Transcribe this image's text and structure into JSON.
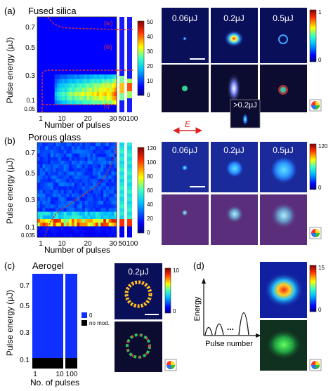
{
  "panels": {
    "a": {
      "label": "(a)",
      "title": "Fused silica",
      "ylabel": "Pulse energy (μJ)",
      "xlabel": "Number of pulses",
      "yticks": [
        "0.7",
        "0.5",
        "0.3",
        "0.1",
        "0.05"
      ],
      "xticks": [
        "1",
        "10",
        "20",
        "30",
        "50",
        "100"
      ],
      "colorbar_ticks": [
        "50",
        "40",
        "30",
        "20",
        "10",
        "0"
      ],
      "region_labels": [
        "(iv)",
        "(iii)",
        "(ii)",
        "(i)"
      ],
      "image_labels": [
        "0.06μJ",
        "0.2μJ",
        "0.5μJ"
      ],
      "image_colorbar_ticks": [
        "1",
        "0"
      ],
      "inset_label": ">0.2μJ",
      "field_label": "E"
    },
    "b": {
      "label": "(b)",
      "title": "Porous glass",
      "ylabel": "Pulse energy (μJ)",
      "xlabel": "Number of pulses",
      "yticks": [
        "0.7",
        "0.5",
        "0.3",
        "0.1",
        "0.035"
      ],
      "xticks": [
        "1",
        "10",
        "20",
        "30",
        "50",
        "100"
      ],
      "colorbar_ticks": [
        "120",
        "100",
        "80",
        "60",
        "40",
        "20",
        "0"
      ],
      "image_labels": [
        "0.06μJ",
        "0.2μJ",
        "0.5μJ"
      ],
      "image_colorbar_ticks": [
        "120",
        "0"
      ]
    },
    "c": {
      "label": "(c)",
      "title": "Aerogel",
      "ylabel": "Pulse energy (μJ)",
      "xlabel": "No. of pulses",
      "yticks": [
        "0.7",
        "0.5",
        "0.3",
        "0.1"
      ],
      "xticks": [
        "1",
        "10",
        "100"
      ],
      "legend": [
        "0",
        "no mod."
      ],
      "image_label": "0.2μJ",
      "image_colorbar_ticks": [
        "10",
        "0"
      ]
    },
    "d": {
      "label": "(d)",
      "schematic_ylabel": "Energy",
      "schematic_xlabel": "Pulse number",
      "schematic_dots": "...",
      "image_colorbar_ticks": [
        "15",
        "0"
      ]
    }
  },
  "chart_data": [
    {
      "type": "heatmap",
      "title": "Fused silica",
      "xlabel": "Number of pulses",
      "ylabel": "Pulse energy (μJ)",
      "x": [
        1,
        10,
        20,
        30,
        50,
        100
      ],
      "ylim": [
        0.05,
        0.8
      ],
      "colorbar_range": [
        0,
        50
      ],
      "rows_low_to_high_energy": [
        [
          0,
          0,
          0,
          0,
          0,
          0,
          0,
          0,
          0,
          0,
          0,
          0,
          0,
          0,
          0,
          0,
          0,
          0,
          0,
          0,
          0,
          0,
          0,
          0,
          0,
          0,
          0,
          0,
          0,
          0,
          0,
          0
        ],
        [
          0,
          0,
          0,
          0,
          0,
          0,
          0,
          8,
          10,
          12,
          14,
          14,
          16,
          18,
          16,
          18,
          20,
          18,
          20,
          22,
          20,
          22,
          24,
          22,
          24,
          22,
          26,
          24,
          26,
          24,
          28,
          30
        ],
        [
          0,
          0,
          0,
          0,
          0,
          0,
          0,
          12,
          16,
          18,
          20,
          18,
          22,
          24,
          20,
          24,
          22,
          26,
          24,
          22,
          28,
          24,
          26,
          28,
          26,
          30,
          28,
          26,
          30,
          28,
          34,
          36
        ],
        [
          0,
          0,
          0,
          0,
          0,
          0,
          0,
          14,
          18,
          20,
          22,
          20,
          24,
          26,
          24,
          28,
          26,
          28,
          30,
          26,
          30,
          28,
          32,
          30,
          34,
          30,
          32,
          34,
          30,
          32,
          36,
          40
        ],
        [
          0,
          0,
          0,
          0,
          0,
          0,
          0,
          10,
          14,
          16,
          18,
          16,
          20,
          22,
          20,
          22,
          24,
          22,
          26,
          24,
          26,
          28,
          24,
          28,
          26,
          30,
          28,
          30,
          32,
          28,
          32,
          36
        ],
        [
          0,
          0,
          0,
          0,
          0,
          0,
          0,
          8,
          12,
          14,
          14,
          16,
          16,
          18,
          20,
          18,
          20,
          22,
          20,
          22,
          24,
          22,
          24,
          26,
          24,
          26,
          28,
          26,
          28,
          26,
          30,
          32
        ],
        [
          0,
          0,
          0,
          0,
          0,
          0,
          0,
          6,
          8,
          10,
          12,
          10,
          12,
          14,
          12,
          14,
          16,
          14,
          16,
          18,
          16,
          18,
          20,
          18,
          20,
          18,
          22,
          20,
          22,
          20,
          24,
          26
        ],
        [
          0,
          0,
          0,
          0,
          0,
          0,
          0,
          4,
          4,
          6,
          6,
          6,
          8,
          8,
          8,
          10,
          8,
          10,
          10,
          12,
          10,
          12,
          12,
          14,
          12,
          14,
          14,
          12,
          14,
          14,
          16,
          18
        ],
        [
          0,
          0,
          0,
          0,
          0,
          0,
          0,
          0,
          0,
          0,
          0,
          0,
          0,
          0,
          0,
          0,
          0,
          0,
          0,
          0,
          0,
          0,
          0,
          0,
          0,
          0,
          0,
          0,
          0,
          0,
          0,
          0
        ]
      ]
    },
    {
      "type": "heatmap",
      "title": "Porous glass",
      "xlabel": "Number of pulses",
      "ylabel": "Pulse energy (μJ)",
      "x": [
        1,
        10,
        20,
        30,
        50,
        100
      ],
      "ylim": [
        0.035,
        0.8
      ],
      "colorbar_range": [
        0,
        120
      ]
    },
    {
      "type": "heatmap",
      "title": "Aerogel",
      "xlabel": "No. of pulses",
      "ylabel": "Pulse energy (μJ)",
      "x": [
        1,
        10,
        100
      ],
      "legend": [
        "0",
        "no mod."
      ]
    }
  ]
}
